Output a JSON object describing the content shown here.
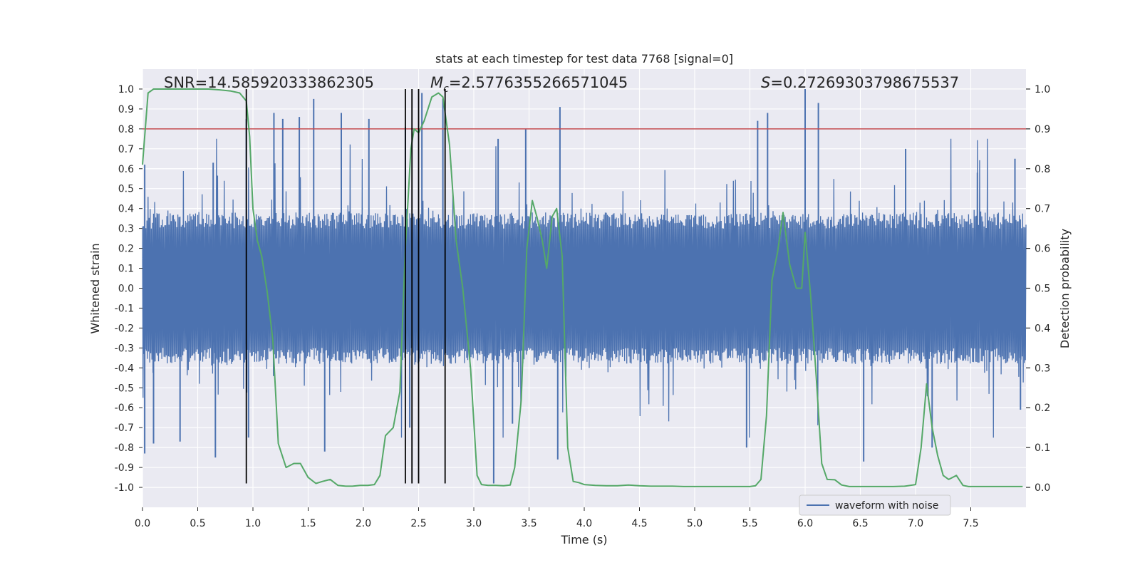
{
  "chart_data": {
    "type": "line",
    "title": "stats at each timestep for test data 7768 [signal=0]",
    "xlabel": "Time (s)",
    "ylabel": "Whitened strain",
    "y2label": "Detection probability",
    "xlim": [
      0.0,
      8.0
    ],
    "ylim": [
      -1.1,
      1.1
    ],
    "y2lim": [
      -0.05,
      1.05
    ],
    "xticks": [
      0.0,
      0.5,
      1.0,
      1.5,
      2.0,
      2.5,
      3.0,
      3.5,
      4.0,
      4.5,
      5.0,
      5.5,
      6.0,
      6.5,
      7.0,
      7.5
    ],
    "xtick_labels": [
      "0.0",
      "0.5",
      "1.0",
      "1.5",
      "2.0",
      "2.5",
      "3.0",
      "3.5",
      "4.0",
      "4.5",
      "5.0",
      "5.5",
      "6.0",
      "6.5",
      "7.0",
      "7.5"
    ],
    "yticks": [
      1.0,
      0.9,
      0.8,
      0.7,
      0.6,
      0.5,
      0.4,
      0.3,
      0.2,
      0.1,
      0.0,
      -0.1,
      -0.2,
      -0.3,
      -0.4,
      -0.5,
      -0.6,
      -0.7,
      -0.8,
      -0.9,
      -1.0
    ],
    "ytick_labels": [
      "1.0",
      "0.9",
      "0.8",
      "0.7",
      "0.6",
      "0.5",
      "0.4",
      "0.3",
      "0.2",
      "0.1",
      "0.0",
      "-0.1",
      "-0.2",
      "-0.3",
      "-0.4",
      "-0.5",
      "-0.6",
      "-0.7",
      "-0.8",
      "-0.9",
      "-1.0"
    ],
    "y2ticks": [
      1.0,
      0.9,
      0.8,
      0.7,
      0.6,
      0.5,
      0.4,
      0.3,
      0.2,
      0.1,
      0.0
    ],
    "y2tick_labels": [
      "1.0",
      "0.9",
      "0.8",
      "0.7",
      "0.6",
      "0.5",
      "0.4",
      "0.3",
      "0.2",
      "0.1",
      "0.0"
    ],
    "grid": true,
    "legend": {
      "entries": [
        "waveform with noise"
      ],
      "location": "lower-right"
    },
    "annotations": {
      "snr": "SNR=14.585920333862305",
      "mc_symbol": "M",
      "mc_sub": "c",
      "mc_value": "=2.5776355266571045",
      "s_symbol": "S",
      "s_value": "=0.27269303798675537"
    },
    "threshold_line": {
      "y": 0.9,
      "axis": "secondary",
      "color": "#c44e52"
    },
    "event_lines": {
      "x": [
        0.94,
        2.38,
        2.44,
        2.5,
        2.74
      ],
      "ymin": -0.98,
      "ymax": 1.0
    },
    "waveform": {
      "name": "waveform with noise",
      "color": "#4c72b0",
      "description": "dense noisy whitened strain between about -0.85 and 1.0, mostly within -0.4..0.4",
      "peaks": [
        {
          "x": 0.02,
          "y": 0.62
        },
        {
          "x": 0.02,
          "y": -0.83
        },
        {
          "x": 0.1,
          "y": -0.78
        },
        {
          "x": 0.34,
          "y": -0.77
        },
        {
          "x": 0.64,
          "y": 0.63
        },
        {
          "x": 0.66,
          "y": -0.85
        },
        {
          "x": 0.94,
          "y": 0.85
        },
        {
          "x": 0.96,
          "y": -0.75
        },
        {
          "x": 1.19,
          "y": 0.88
        },
        {
          "x": 1.27,
          "y": 0.85
        },
        {
          "x": 1.42,
          "y": 0.86
        },
        {
          "x": 1.55,
          "y": 0.95
        },
        {
          "x": 1.65,
          "y": -0.82
        },
        {
          "x": 1.8,
          "y": 0.88
        },
        {
          "x": 2.05,
          "y": 0.85
        },
        {
          "x": 2.38,
          "y": 0.81
        },
        {
          "x": 2.42,
          "y": -0.7
        },
        {
          "x": 2.53,
          "y": 0.98
        },
        {
          "x": 2.72,
          "y": 0.95
        },
        {
          "x": 3.18,
          "y": -0.98
        },
        {
          "x": 3.22,
          "y": 0.75
        },
        {
          "x": 3.35,
          "y": -0.68
        },
        {
          "x": 3.47,
          "y": 0.8
        },
        {
          "x": 3.76,
          "y": -0.86
        },
        {
          "x": 3.78,
          "y": 0.91
        },
        {
          "x": 5.47,
          "y": -0.8
        },
        {
          "x": 5.57,
          "y": 0.84
        },
        {
          "x": 5.66,
          "y": 0.88
        },
        {
          "x": 6.0,
          "y": 1.0
        },
        {
          "x": 6.12,
          "y": 0.93
        },
        {
          "x": 6.53,
          "y": -0.87
        },
        {
          "x": 6.91,
          "y": 0.7
        },
        {
          "x": 7.15,
          "y": -0.8
        },
        {
          "x": 7.56,
          "y": 0.58
        },
        {
          "x": 7.9,
          "y": 0.65
        },
        {
          "x": 7.95,
          "y": -0.61
        }
      ]
    },
    "probability": {
      "name": "detection probability",
      "color": "#55a868",
      "x": [
        0.0,
        0.05,
        0.1,
        0.2,
        0.3,
        0.4,
        0.5,
        0.6,
        0.7,
        0.8,
        0.88,
        0.94,
        0.97,
        1.0,
        1.04,
        1.08,
        1.13,
        1.18,
        1.23,
        1.3,
        1.37,
        1.43,
        1.5,
        1.57,
        1.63,
        1.7,
        1.77,
        1.84,
        1.9,
        1.97,
        2.04,
        2.1,
        2.15,
        2.2,
        2.27,
        2.33,
        2.38,
        2.43,
        2.46,
        2.5,
        2.55,
        2.62,
        2.68,
        2.72,
        2.78,
        2.84,
        2.9,
        2.97,
        3.03,
        3.07,
        3.13,
        3.2,
        3.27,
        3.33,
        3.37,
        3.43,
        3.48,
        3.53,
        3.57,
        3.62,
        3.66,
        3.71,
        3.75,
        3.8,
        3.85,
        3.9,
        3.95,
        4.0,
        4.1,
        4.2,
        4.3,
        4.4,
        4.5,
        4.6,
        4.7,
        4.8,
        4.9,
        5.0,
        5.1,
        5.2,
        5.3,
        5.4,
        5.5,
        5.55,
        5.6,
        5.65,
        5.7,
        5.75,
        5.8,
        5.86,
        5.92,
        5.97,
        6.0,
        6.05,
        6.1,
        6.15,
        6.2,
        6.27,
        6.33,
        6.4,
        6.5,
        6.6,
        6.7,
        6.8,
        6.9,
        7.0,
        7.05,
        7.1,
        7.15,
        7.2,
        7.25,
        7.3,
        7.37,
        7.43,
        7.48,
        7.55,
        7.6,
        7.7,
        7.8,
        7.9,
        7.97
      ],
      "values": [
        0.81,
        0.99,
        1.0,
        1.0,
        1.0,
        1.0,
        1.0,
        1.0,
        0.998,
        0.995,
        0.99,
        0.97,
        0.88,
        0.7,
        0.62,
        0.58,
        0.49,
        0.37,
        0.11,
        0.05,
        0.06,
        0.06,
        0.025,
        0.01,
        0.015,
        0.02,
        0.005,
        0.003,
        0.003,
        0.005,
        0.005,
        0.007,
        0.03,
        0.13,
        0.15,
        0.24,
        0.6,
        0.85,
        0.9,
        0.89,
        0.92,
        0.98,
        0.99,
        0.98,
        0.86,
        0.62,
        0.5,
        0.3,
        0.03,
        0.007,
        0.005,
        0.005,
        0.004,
        0.006,
        0.05,
        0.22,
        0.6,
        0.72,
        0.68,
        0.62,
        0.55,
        0.68,
        0.7,
        0.58,
        0.1,
        0.015,
        0.012,
        0.007,
        0.005,
        0.004,
        0.004,
        0.006,
        0.004,
        0.003,
        0.003,
        0.003,
        0.002,
        0.002,
        0.002,
        0.002,
        0.002,
        0.002,
        0.002,
        0.004,
        0.02,
        0.18,
        0.52,
        0.59,
        0.69,
        0.56,
        0.5,
        0.5,
        0.64,
        0.48,
        0.28,
        0.06,
        0.02,
        0.019,
        0.006,
        0.002,
        0.002,
        0.002,
        0.002,
        0.002,
        0.003,
        0.007,
        0.1,
        0.26,
        0.15,
        0.08,
        0.03,
        0.02,
        0.03,
        0.005,
        0.002,
        0.002,
        0.002,
        0.002,
        0.002,
        0.002,
        0.002
      ]
    }
  }
}
